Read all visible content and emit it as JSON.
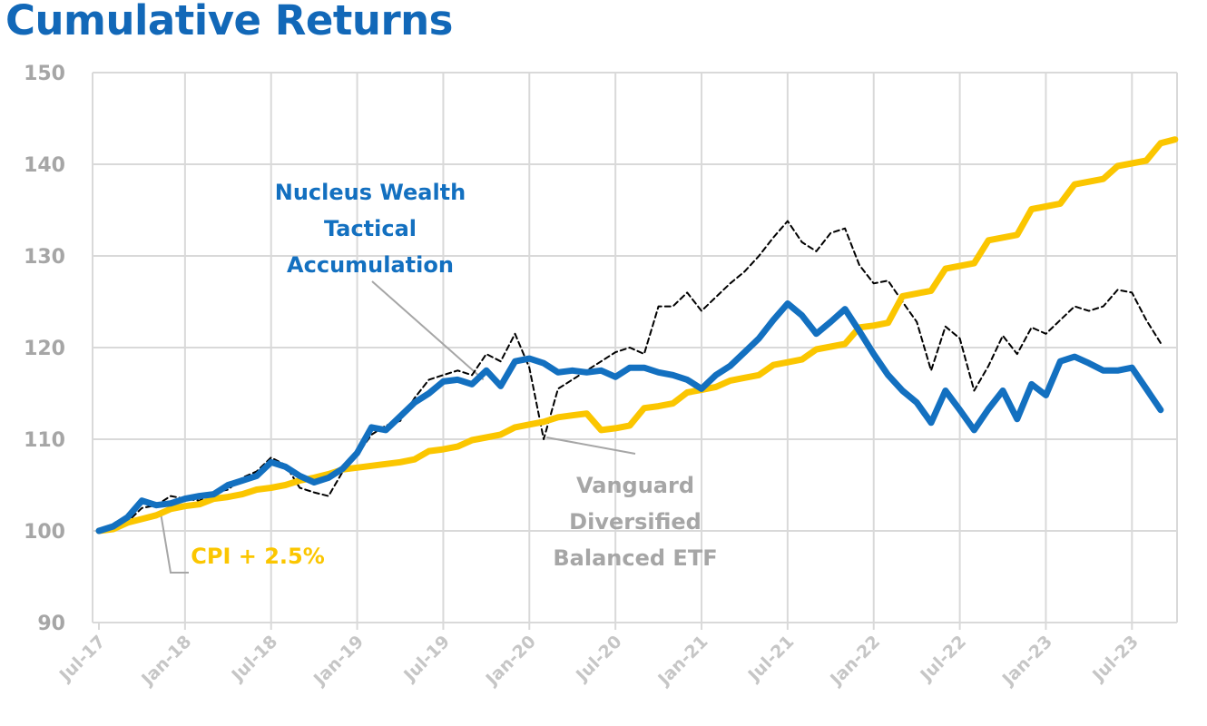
{
  "title": "Cumulative Returns",
  "chart_data": {
    "type": "line",
    "title": "Cumulative Returns",
    "xlabel": "",
    "ylabel": "",
    "ylim": [
      90,
      150
    ],
    "yticks": [
      90,
      100,
      110,
      120,
      130,
      140,
      150
    ],
    "xlim": [
      0,
      75
    ],
    "grid": true,
    "legend": "none (direct annotations)",
    "x_tick_labels": [
      {
        "x": 0,
        "label": "Jul-17"
      },
      {
        "x": 6,
        "label": "Jan-18"
      },
      {
        "x": 12,
        "label": "Jul-18"
      },
      {
        "x": 18,
        "label": "Jan-19"
      },
      {
        "x": 24,
        "label": "Jul-19"
      },
      {
        "x": 30,
        "label": "Jan-20"
      },
      {
        "x": 36,
        "label": "Jul-20"
      },
      {
        "x": 42,
        "label": "Jan-21"
      },
      {
        "x": 48,
        "label": "Jul-21"
      },
      {
        "x": 54,
        "label": "Jan-22"
      },
      {
        "x": 60,
        "label": "Jul-22"
      },
      {
        "x": 66,
        "label": "Jan-23"
      },
      {
        "x": 72,
        "label": "Jul-23"
      }
    ],
    "series": [
      {
        "name": "Nucleus Wealth Tactical Accumulation",
        "color": "#1370c0",
        "style": "solid",
        "points": [
          [
            0,
            100
          ],
          [
            1,
            100.5
          ],
          [
            2,
            101.5
          ],
          [
            3,
            103.3
          ],
          [
            4,
            102.8
          ],
          [
            5,
            103
          ],
          [
            6,
            103.5
          ],
          [
            7,
            103.8
          ],
          [
            8,
            104
          ],
          [
            9,
            105
          ],
          [
            10,
            105.5
          ],
          [
            11,
            106
          ],
          [
            12,
            107.5
          ],
          [
            13,
            107
          ],
          [
            14,
            106
          ],
          [
            15,
            105.3
          ],
          [
            16,
            105.8
          ],
          [
            17,
            106.8
          ],
          [
            18,
            108.5
          ],
          [
            19,
            111.3
          ],
          [
            20,
            111
          ],
          [
            21,
            112.5
          ],
          [
            22,
            114
          ],
          [
            23,
            115
          ],
          [
            24,
            116.3
          ],
          [
            25,
            116.5
          ],
          [
            26,
            116
          ],
          [
            27,
            117.5
          ],
          [
            28,
            115.8
          ],
          [
            29,
            118.5
          ],
          [
            30,
            118.8
          ],
          [
            31,
            118.3
          ],
          [
            32,
            117.3
          ],
          [
            33,
            117.5
          ],
          [
            34,
            117.3
          ],
          [
            35,
            117.5
          ],
          [
            36,
            116.8
          ],
          [
            37,
            117.8
          ],
          [
            38,
            117.8
          ],
          [
            39,
            117.3
          ],
          [
            40,
            117
          ],
          [
            41,
            116.5
          ],
          [
            42,
            115.5
          ],
          [
            43,
            117
          ],
          [
            44,
            118
          ],
          [
            45,
            119.5
          ],
          [
            46,
            121
          ],
          [
            47,
            123
          ],
          [
            48,
            124.8
          ],
          [
            49,
            123.5
          ],
          [
            50,
            121.5
          ],
          [
            51,
            122.8
          ],
          [
            52,
            124.2
          ],
          [
            53,
            121.8
          ],
          [
            54,
            119.3
          ],
          [
            55,
            117
          ],
          [
            56,
            115.3
          ],
          [
            57,
            114
          ],
          [
            58,
            111.8
          ],
          [
            59,
            115.3
          ],
          [
            60,
            113.2
          ],
          [
            61,
            111
          ],
          [
            62,
            113.3
          ],
          [
            63,
            115.3
          ],
          [
            64,
            112.2
          ],
          [
            65,
            116
          ],
          [
            66,
            114.8
          ],
          [
            67,
            118.5
          ],
          [
            68,
            119
          ],
          [
            69,
            118.3
          ],
          [
            70,
            117.5
          ],
          [
            71,
            117.5
          ],
          [
            72,
            117.8
          ],
          [
            73,
            115.5
          ],
          [
            74,
            113.2
          ]
        ]
      },
      {
        "name": "Vanguard Diversified Balanced ETF",
        "color": "#000000",
        "style": "dashed",
        "points": [
          [
            0,
            100
          ],
          [
            1,
            100.3
          ],
          [
            2,
            101
          ],
          [
            3,
            102.5
          ],
          [
            4,
            102.8
          ],
          [
            5,
            103.8
          ],
          [
            6,
            103.5
          ],
          [
            7,
            103.3
          ],
          [
            8,
            104.2
          ],
          [
            9,
            104.5
          ],
          [
            10,
            105.8
          ],
          [
            11,
            106.5
          ],
          [
            12,
            108
          ],
          [
            13,
            107.2
          ],
          [
            14,
            104.7
          ],
          [
            15,
            104.2
          ],
          [
            16,
            103.8
          ],
          [
            17,
            106.5
          ],
          [
            18,
            108.3
          ],
          [
            19,
            110.5
          ],
          [
            20,
            111.5
          ],
          [
            21,
            112
          ],
          [
            22,
            114.5
          ],
          [
            23,
            116.5
          ],
          [
            24,
            117
          ],
          [
            25,
            117.5
          ],
          [
            26,
            117
          ],
          [
            27,
            119.3
          ],
          [
            28,
            118.5
          ],
          [
            29,
            121.5
          ],
          [
            30,
            117.8
          ],
          [
            31,
            110
          ],
          [
            32,
            115.5
          ],
          [
            33,
            116.5
          ],
          [
            34,
            117.5
          ],
          [
            35,
            118.5
          ],
          [
            36,
            119.5
          ],
          [
            37,
            120
          ],
          [
            38,
            119.3
          ],
          [
            39,
            124.5
          ],
          [
            40,
            124.5
          ],
          [
            41,
            126
          ],
          [
            42,
            124
          ],
          [
            43,
            125.5
          ],
          [
            44,
            127
          ],
          [
            45,
            128.3
          ],
          [
            46,
            130
          ],
          [
            47,
            132
          ],
          [
            48,
            133.8
          ],
          [
            49,
            131.5
          ],
          [
            50,
            130.5
          ],
          [
            51,
            132.5
          ],
          [
            52,
            133
          ],
          [
            53,
            129
          ],
          [
            54,
            127
          ],
          [
            55,
            127.3
          ],
          [
            56,
            125
          ],
          [
            57,
            122.8
          ],
          [
            58,
            117.5
          ],
          [
            59,
            122.3
          ],
          [
            60,
            121
          ],
          [
            61,
            115.3
          ],
          [
            62,
            118
          ],
          [
            63,
            121.3
          ],
          [
            64,
            119.3
          ],
          [
            65,
            122.2
          ],
          [
            66,
            121.5
          ],
          [
            67,
            123
          ],
          [
            68,
            124.5
          ],
          [
            69,
            124
          ],
          [
            70,
            124.5
          ],
          [
            71,
            126.3
          ],
          [
            72,
            126
          ],
          [
            73,
            123
          ],
          [
            74,
            120.5
          ]
        ]
      },
      {
        "name": "CPI + 2.5%",
        "color": "#fbc600",
        "style": "solid",
        "points": [
          [
            0,
            100
          ],
          [
            1,
            100.2
          ],
          [
            2,
            100.9
          ],
          [
            3,
            101.3
          ],
          [
            4,
            101.7
          ],
          [
            5,
            102.4
          ],
          [
            6,
            102.7
          ],
          [
            7,
            102.9
          ],
          [
            8,
            103.5
          ],
          [
            9,
            103.7
          ],
          [
            10,
            104
          ],
          [
            11,
            104.5
          ],
          [
            12,
            104.7
          ],
          [
            13,
            105
          ],
          [
            14,
            105.5
          ],
          [
            15,
            105.8
          ],
          [
            16,
            106.2
          ],
          [
            17,
            106.7
          ],
          [
            18,
            106.9
          ],
          [
            19,
            107.1
          ],
          [
            20,
            107.3
          ],
          [
            21,
            107.5
          ],
          [
            22,
            107.8
          ],
          [
            23,
            108.7
          ],
          [
            24,
            108.9
          ],
          [
            25,
            109.2
          ],
          [
            26,
            109.9
          ],
          [
            27,
            110.2
          ],
          [
            28,
            110.5
          ],
          [
            29,
            111.3
          ],
          [
            30,
            111.6
          ],
          [
            31,
            111.9
          ],
          [
            32,
            112.4
          ],
          [
            33,
            112.6
          ],
          [
            34,
            112.8
          ],
          [
            35,
            111
          ],
          [
            36,
            111.2
          ],
          [
            37,
            111.5
          ],
          [
            38,
            113.4
          ],
          [
            39,
            113.6
          ],
          [
            40,
            113.9
          ],
          [
            41,
            115.1
          ],
          [
            42,
            115.4
          ],
          [
            43,
            115.7
          ],
          [
            44,
            116.4
          ],
          [
            45,
            116.7
          ],
          [
            46,
            117
          ],
          [
            47,
            118.1
          ],
          [
            48,
            118.4
          ],
          [
            49,
            118.7
          ],
          [
            50,
            119.8
          ],
          [
            51,
            120.1
          ],
          [
            52,
            120.4
          ],
          [
            53,
            122.2
          ],
          [
            54,
            122.4
          ],
          [
            55,
            122.7
          ],
          [
            56,
            125.6
          ],
          [
            57,
            125.9
          ],
          [
            58,
            126.2
          ],
          [
            59,
            128.6
          ],
          [
            60,
            128.9
          ],
          [
            61,
            129.2
          ],
          [
            62,
            131.7
          ],
          [
            63,
            132
          ],
          [
            64,
            132.3
          ],
          [
            65,
            135.1
          ],
          [
            66,
            135.4
          ],
          [
            67,
            135.7
          ],
          [
            68,
            137.8
          ],
          [
            69,
            138.1
          ],
          [
            70,
            138.4
          ],
          [
            71,
            139.8
          ],
          [
            72,
            140.1
          ],
          [
            73,
            140.4
          ],
          [
            74,
            142.3
          ],
          [
            75,
            142.7
          ]
        ]
      }
    ],
    "annotations": [
      {
        "lines": [
          "Nucleus Wealth",
          "Tactical",
          "Accumulation"
        ],
        "color": "#1370c0"
      },
      {
        "lines": [
          "Vanguard",
          "Diversified",
          "Balanced ETF"
        ],
        "color": "#a6a6a6"
      },
      {
        "lines": [
          "CPI + 2.5%"
        ],
        "color": "#fbc600"
      }
    ]
  }
}
